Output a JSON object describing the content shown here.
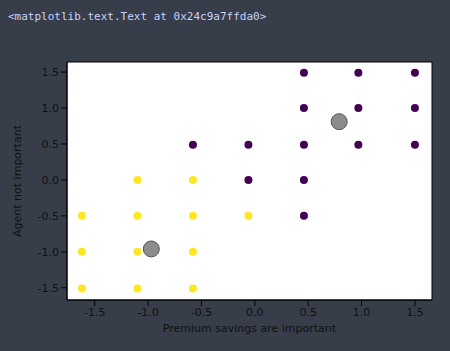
{
  "chart_data": {
    "type": "scatter",
    "annotations": [
      "<matplotlib.text.Text at 0x24c9a7ffda0>"
    ],
    "x_label": "Premium savings are important",
    "y_label": "Agent not important",
    "xlim": [
      -1.76,
      1.66
    ],
    "ylim": [
      -1.67,
      1.64
    ],
    "xticks": [
      -1.5,
      {
        "value": -1,
        "label": "-1.0"
      },
      -0.5,
      {
        "value": 0,
        "label": "0.0"
      },
      0.5,
      {
        "value": 1,
        "label": "1.0"
      },
      1.5
    ],
    "yticks": [
      -1.5,
      {
        "value": -1,
        "label": "-1.0"
      },
      -0.5,
      {
        "value": 0,
        "label": "0.0"
      },
      0.5,
      {
        "value": 1,
        "label": "1.0"
      },
      1.5
    ],
    "grid": false,
    "series": [
      {
        "color": "#fde725",
        "marker": "circle",
        "x": [
          -1.62,
          -1.62,
          -1.62,
          -1.1,
          -1.1,
          -1.1,
          -1.1,
          -0.58,
          -0.58,
          -0.58,
          -0.58,
          -0.06
        ],
        "y": [
          -0.5,
          -1.0,
          -1.51,
          0.0,
          -0.5,
          -1.0,
          -1.51,
          0.0,
          -0.5,
          -1.0,
          -1.51,
          -0.5
        ]
      },
      {
        "color": "#440154",
        "marker": "circle",
        "x": [
          -0.58,
          -0.06,
          -0.06,
          0.46,
          0.46,
          0.46,
          0.46,
          0.46,
          0.97,
          0.97,
          0.97,
          1.5,
          1.5,
          1.5
        ],
        "y": [
          0.49,
          0.49,
          0.0,
          1.49,
          1.0,
          0.49,
          0.0,
          -0.5,
          1.49,
          1.0,
          0.49,
          1.49,
          1.0,
          0.49
        ]
      },
      {
        "color": "#7f7f7f",
        "marker": "big_circle",
        "x": [
          0.79,
          -0.97
        ],
        "y": [
          0.81,
          -0.96
        ]
      }
    ]
  }
}
